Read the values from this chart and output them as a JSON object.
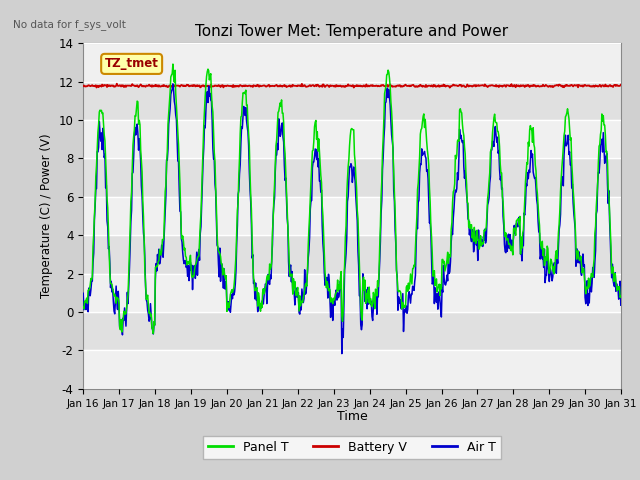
{
  "title": "Tonzi Tower Met: Temperature and Power",
  "ylabel": "Temperature (C) / Power (V)",
  "xlabel": "Time",
  "ylim": [
    -4,
    14
  ],
  "xlim": [
    0,
    15
  ],
  "x_tick_labels": [
    "Jan 16",
    "Jan 17",
    "Jan 18",
    "Jan 19",
    "Jan 20",
    "Jan 21",
    "Jan 22",
    "Jan 23",
    "Jan 24",
    "Jan 25",
    "Jan 26",
    "Jan 27",
    "Jan 28",
    "Jan 29",
    "Jan 30",
    "Jan 31"
  ],
  "no_data_text": "No data for f_sys_volt",
  "legend_label": "TZ_tmet",
  "fig_bg_color": "#d0d0d0",
  "plot_bg_color": "#e0e0e0",
  "white_band_color": "#f0f0f0",
  "line_panel_color": "#00dd00",
  "line_battery_color": "#cc0000",
  "line_air_color": "#0000cc",
  "battery_v": 11.78,
  "figsize": [
    6.4,
    4.8
  ],
  "dpi": 100
}
